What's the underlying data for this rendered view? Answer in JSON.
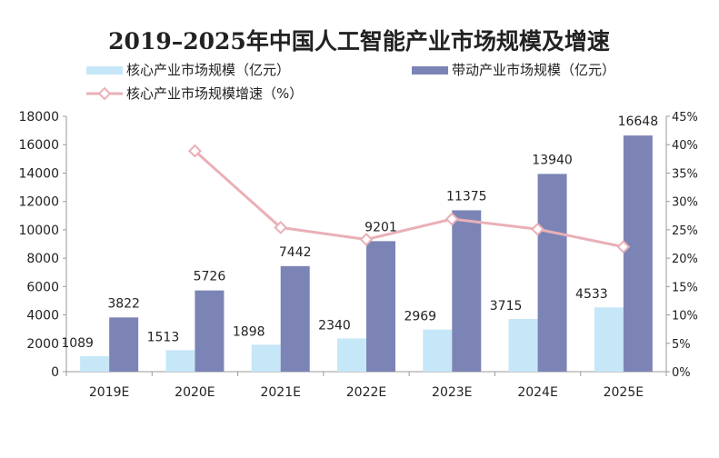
{
  "chart_data": {
    "type": "bar",
    "title": "2019–2025年中国人工智能产业市场规模及增速",
    "categories": [
      "2019E",
      "2020E",
      "2021E",
      "2022E",
      "2023E",
      "2024E",
      "2025E"
    ],
    "series": [
      {
        "name": "核心产业市场规模（亿元）",
        "type": "bar",
        "axis": "left",
        "color": "#c6e7f7",
        "values": [
          1089,
          1513,
          1898,
          2340,
          2969,
          3715,
          4533
        ],
        "labels": [
          "1089",
          "1513",
          "1898",
          "2340",
          "2969",
          "3715",
          "4533"
        ]
      },
      {
        "name": "带动产业市场规模（亿元）",
        "type": "bar",
        "axis": "left",
        "color": "#7c84b6",
        "values": [
          3822,
          5726,
          7442,
          9201,
          11375,
          13940,
          16648
        ],
        "labels": [
          "3822",
          "5726",
          "7442",
          "9201",
          "11375",
          "13940",
          "16648"
        ]
      },
      {
        "name": "核心产业市场规模增速（%）",
        "type": "line",
        "axis": "right",
        "color": "#e9b0b7",
        "values": [
          null,
          38.9,
          25.4,
          23.3,
          26.9,
          25.1,
          22.0
        ]
      }
    ],
    "ylim": [
      0,
      18000
    ],
    "y_ticks": [
      "0",
      "2000",
      "4000",
      "6000",
      "8000",
      "10000",
      "12000",
      "14000",
      "16000",
      "18000"
    ],
    "y2lim": [
      0,
      45
    ],
    "y2_ticks": [
      "0%",
      "5%",
      "10%",
      "15%",
      "20%",
      "25%",
      "30%",
      "35%",
      "40%",
      "45%"
    ],
    "grid": false,
    "legend_position": "top-left"
  }
}
